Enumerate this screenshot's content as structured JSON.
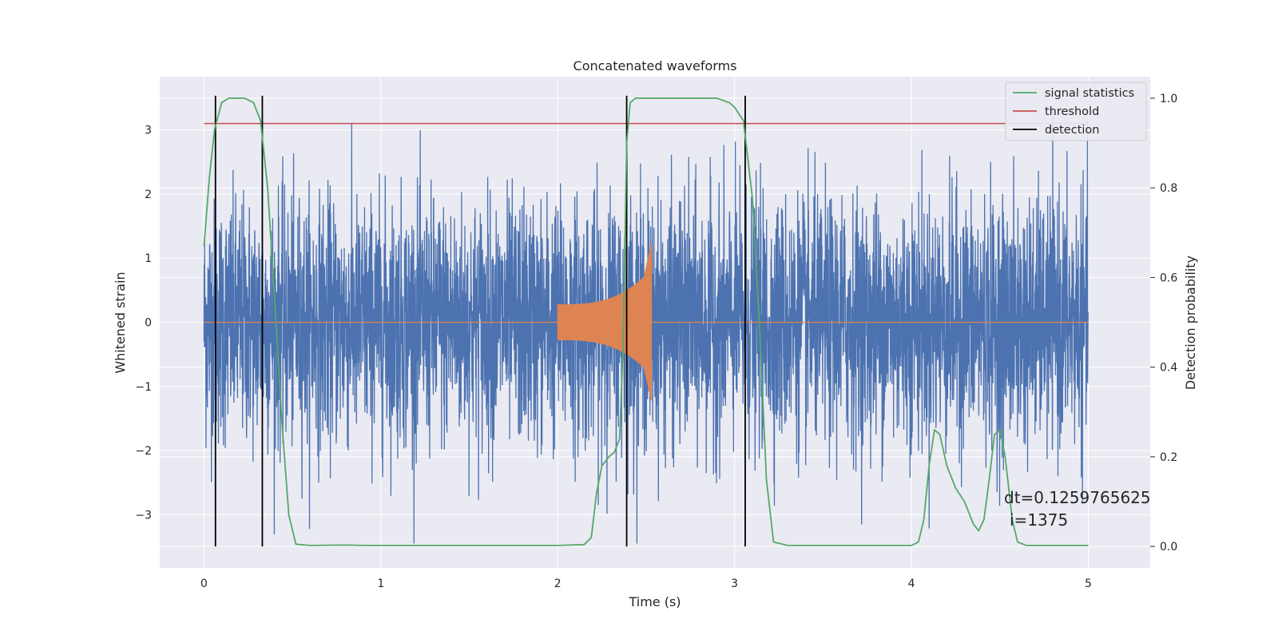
{
  "chart_data": {
    "type": "line",
    "title": "Concatenated waveforms",
    "xlabel": "Time (s)",
    "ylabel": "Whitened strain",
    "y2label": "Detection probability",
    "xlim": [
      -0.25,
      5.35
    ],
    "ylim": [
      -3.83,
      3.83
    ],
    "y2lim": [
      -0.048,
      1.048
    ],
    "xticks": [
      0,
      1,
      2,
      3,
      4,
      5
    ],
    "yticks": [
      -3,
      -2,
      -1,
      0,
      1,
      2,
      3
    ],
    "y2ticks": [
      0.0,
      0.2,
      0.4,
      0.6,
      0.8,
      1.0
    ],
    "xtick_labels": [
      "0",
      "1",
      "2",
      "3",
      "4",
      "5"
    ],
    "ytick_labels": [
      "−3",
      "−2",
      "−1",
      "0",
      "1",
      "2",
      "3"
    ],
    "y2tick_labels": [
      "0.0",
      "0.2",
      "0.4",
      "0.6",
      "0.8",
      "1.0"
    ],
    "grid": true,
    "legend_position": "top-right",
    "colors": {
      "strain": "#4c72b0",
      "injection": "#dd8452",
      "signal_statistics": "#55a868",
      "threshold": "#c44e52",
      "detection": "#000000",
      "background": "#eaeaf2",
      "grid": "#ffffff"
    },
    "series": [
      {
        "name": "signal statistics",
        "axis": "right",
        "color": "#55a868",
        "x": [
          0,
          0.03,
          0.06,
          0.1,
          0.14,
          0.18,
          0.23,
          0.28,
          0.32,
          0.36,
          0.4,
          0.44,
          0.48,
          0.52,
          0.6,
          0.8,
          0.9,
          1.0,
          1.5,
          2.0,
          2.15,
          2.19,
          2.22,
          2.25,
          2.29,
          2.32,
          2.35,
          2.37,
          2.39,
          2.41,
          2.44,
          2.48,
          2.6,
          2.9,
          2.97,
          3.0,
          3.05,
          3.1,
          3.14,
          3.18,
          3.22,
          3.3,
          3.6,
          4.0,
          4.04,
          4.07,
          4.1,
          4.13,
          4.16,
          4.2,
          4.25,
          4.3,
          4.35,
          4.38,
          4.41,
          4.44,
          4.47,
          4.5,
          4.53,
          4.57,
          4.6,
          4.65,
          4.8,
          5.0
        ],
        "y": [
          0.67,
          0.82,
          0.93,
          0.99,
          1.0,
          1.0,
          1.0,
          0.99,
          0.95,
          0.8,
          0.55,
          0.28,
          0.07,
          0.005,
          0.002,
          0.003,
          0.002,
          0.002,
          0.002,
          0.002,
          0.004,
          0.02,
          0.12,
          0.18,
          0.2,
          0.21,
          0.24,
          0.45,
          0.9,
          0.99,
          1.0,
          1.0,
          1.0,
          1.0,
          0.99,
          0.98,
          0.95,
          0.78,
          0.5,
          0.15,
          0.01,
          0.002,
          0.002,
          0.002,
          0.01,
          0.06,
          0.18,
          0.26,
          0.25,
          0.18,
          0.13,
          0.1,
          0.05,
          0.035,
          0.06,
          0.15,
          0.25,
          0.26,
          0.2,
          0.06,
          0.01,
          0.002,
          0.002,
          0.002
        ]
      },
      {
        "name": "threshold",
        "axis": "left",
        "color": "#c44e52",
        "x": [
          0,
          5.0
        ],
        "y": [
          3.1,
          3.1
        ]
      },
      {
        "name": "detection",
        "axis": "vertical_lines",
        "color": "#000000",
        "x": [
          0.065,
          0.33,
          2.39,
          3.06
        ]
      },
      {
        "name": "",
        "axis": "left",
        "color": "#4c72b0",
        "description": "whitened strain noise",
        "x_range": [
          0,
          5.0
        ]
      },
      {
        "name": "",
        "axis": "left",
        "color": "#dd8452",
        "description": "injected waveform",
        "x_range": [
          2.0,
          2.53
        ]
      }
    ],
    "annotation": {
      "line1": "dt=0.1259765625",
      "line2": "i=1375"
    }
  }
}
